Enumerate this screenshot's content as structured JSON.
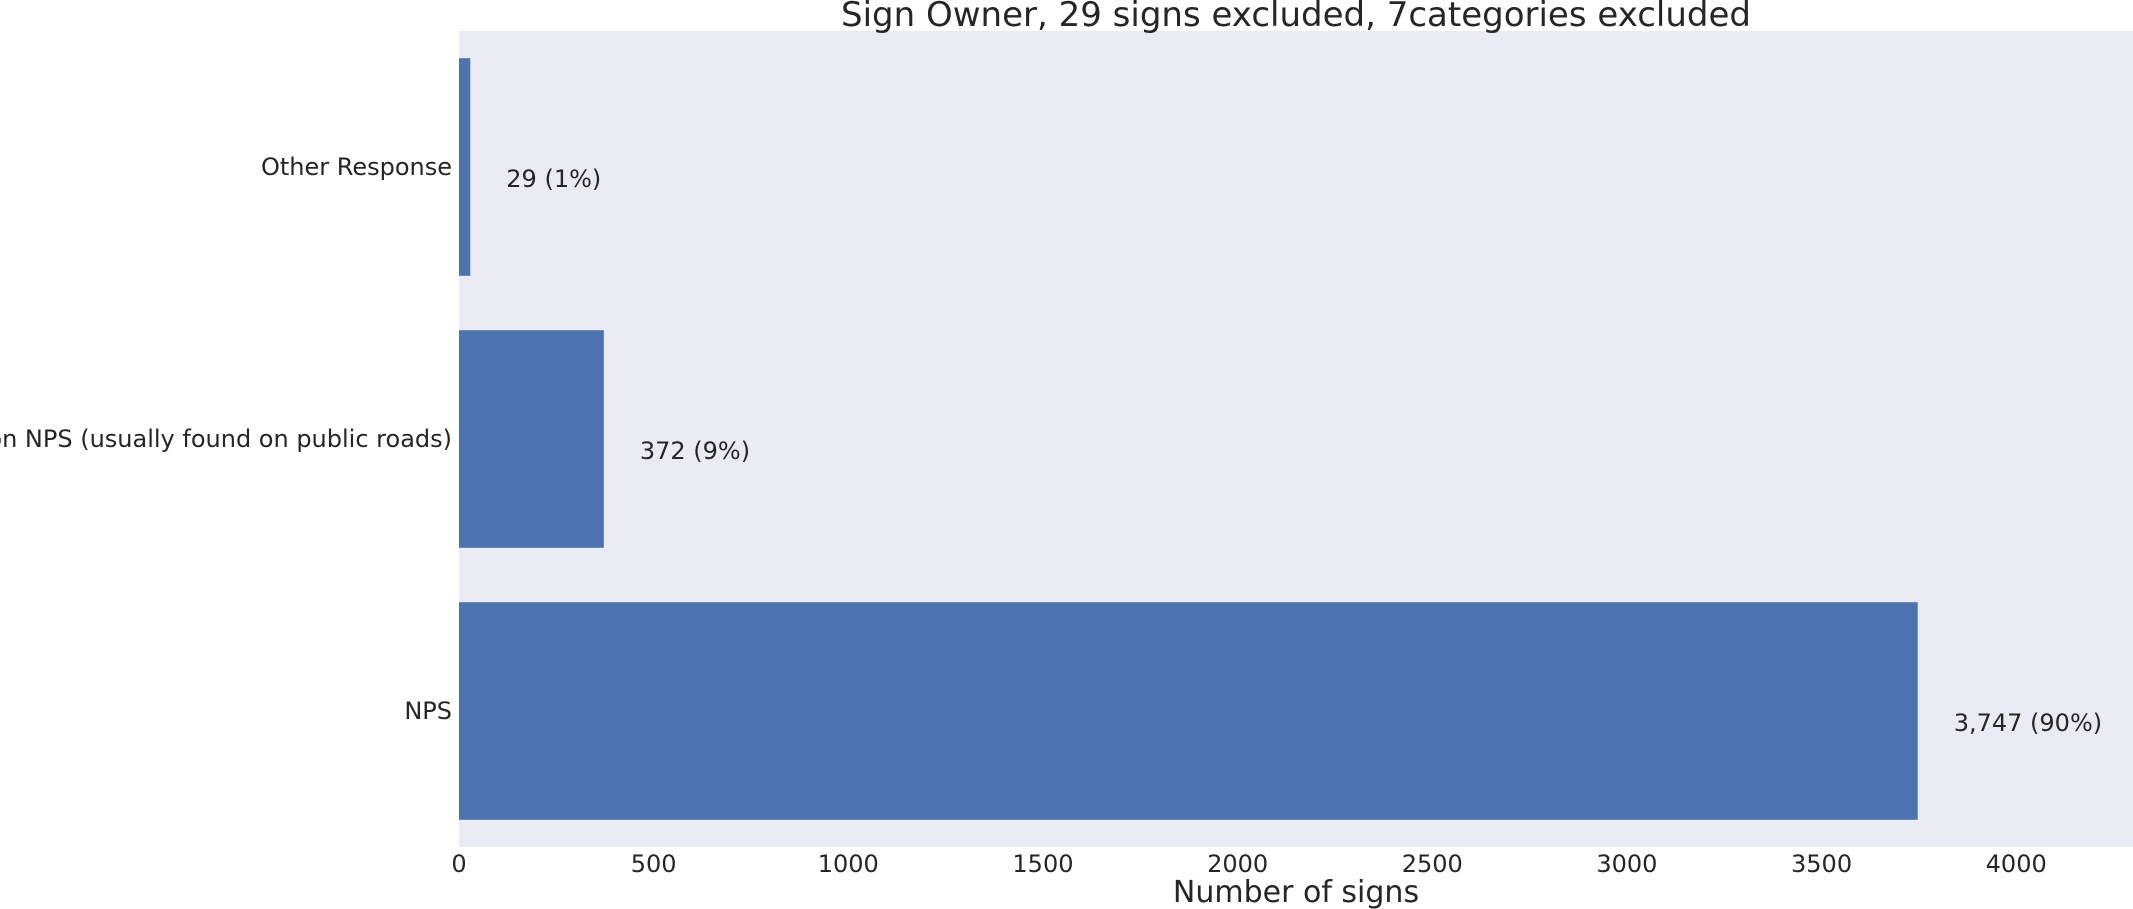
{
  "chart_data": {
    "type": "bar",
    "orientation": "horizontal",
    "title": "Sign Owner, 29 signs excluded, 7categories excluded",
    "xlabel": "Number of signs",
    "ylabel": "",
    "categories": [
      "Other Response",
      "Non NPS (usually found on public roads)",
      "NPS"
    ],
    "values": [
      29,
      372,
      3747
    ],
    "data_labels": [
      "29 (1%)",
      "372 (9%)",
      "3,747 (90%)"
    ],
    "xlim": [
      0,
      4300
    ],
    "xticks": [
      0,
      500,
      1000,
      1500,
      2000,
      2500,
      3000,
      3500,
      4000
    ],
    "grid": false,
    "colors": {
      "bar": "#4c72b0",
      "background": "#eaeaf2",
      "text": "#262626"
    }
  }
}
